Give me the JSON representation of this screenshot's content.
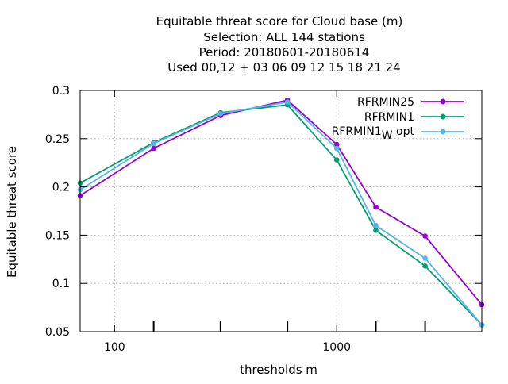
{
  "chart_data": {
    "type": "line",
    "title_lines": [
      "Equitable threat score  for Cloud base (m)",
      "Selection: ALL    144 stations",
      "Period: 20180601-20180614",
      "Used  00,12  + 03 06 09 12 15 18 21 24"
    ],
    "xlabel": "thresholds m",
    "ylabel": "Equitable threat score",
    "x_scale": "log",
    "xlim": [
      70,
      4500
    ],
    "ylim": [
      0.05,
      0.3
    ],
    "x_tick_labels": [
      {
        "value": 100,
        "label": "100"
      },
      {
        "value": 1000,
        "label": "1000"
      }
    ],
    "y_ticks": [
      {
        "value": 0.05,
        "label": "0.05"
      },
      {
        "value": 0.1,
        "label": "0.1"
      },
      {
        "value": 0.15,
        "label": "0.15"
      },
      {
        "value": 0.2,
        "label": "0.2"
      },
      {
        "value": 0.25,
        "label": "0.25"
      },
      {
        "value": 0.3,
        "label": "0.3"
      }
    ],
    "x_minor_ticks": [
      150,
      300,
      600,
      1500,
      2500
    ],
    "grid": true,
    "legend_position": "top-right",
    "x": [
      70,
      150,
      300,
      600,
      1000,
      1500,
      2500,
      4500
    ],
    "series": [
      {
        "name": "RFRMIN25",
        "color": "#9400d3",
        "values": [
          0.191,
          0.24,
          0.274,
          0.29,
          0.244,
          0.179,
          0.149,
          0.078
        ]
      },
      {
        "name": "RFRMIN1",
        "color": "#009e73",
        "values": [
          0.204,
          0.246,
          0.277,
          0.285,
          0.228,
          0.155,
          0.118,
          0.057
        ]
      },
      {
        "name": "RFRMIN1",
        "subscript": "W",
        "suffix": " opt",
        "color": "#56b4e9",
        "values": [
          0.197,
          0.245,
          0.276,
          0.288,
          0.24,
          0.16,
          0.126,
          0.057
        ]
      }
    ]
  }
}
